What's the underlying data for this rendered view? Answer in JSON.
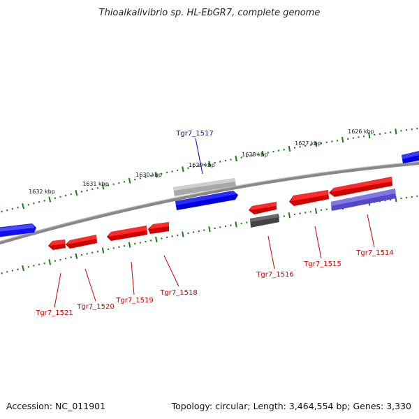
{
  "title": "Thioalkalivibrio sp. HL-EbGR7, complete genome",
  "footer": {
    "accession": "Accession: NC_011901",
    "topology": "Topology: circular; Length: 3,464,554 bp; Genes: 3,330"
  },
  "ruler": {
    "ticks": [
      {
        "label": "1632 kbp"
      },
      {
        "label": "1631 kbp"
      },
      {
        "label": "1630 kbp"
      },
      {
        "label": "1629 kbp"
      },
      {
        "label": "1628 kbp"
      },
      {
        "label": "1627 kbp"
      },
      {
        "label": "1626 kbp"
      }
    ]
  },
  "genes": [
    {
      "label": "Tgr7_1517",
      "color": "#0000cc"
    },
    {
      "label": "Tgr7_1516",
      "color": "#cc0000"
    },
    {
      "label": "Tgr7_1515",
      "color": "#cc0000"
    },
    {
      "label": "Tgr7_1514",
      "color": "#cc0000"
    },
    {
      "label": "Tgr7_1518",
      "color": "#cc0000"
    },
    {
      "label": "Tgr7_1519",
      "color": "#cc0000"
    },
    {
      "label": "Tgr7_1520",
      "color": "#cc0000"
    },
    {
      "label": "Tgr7_1521",
      "color": "#cc0000"
    }
  ],
  "colors": {
    "backbone": "#808080",
    "forward_gene": "#0000ee",
    "reverse_gene": "#ee0000",
    "pseudo_gene": "#b0b0b0",
    "dark_gene": "#555555",
    "purple_gene": "#6655cc",
    "tick": "#1a7a1a"
  }
}
